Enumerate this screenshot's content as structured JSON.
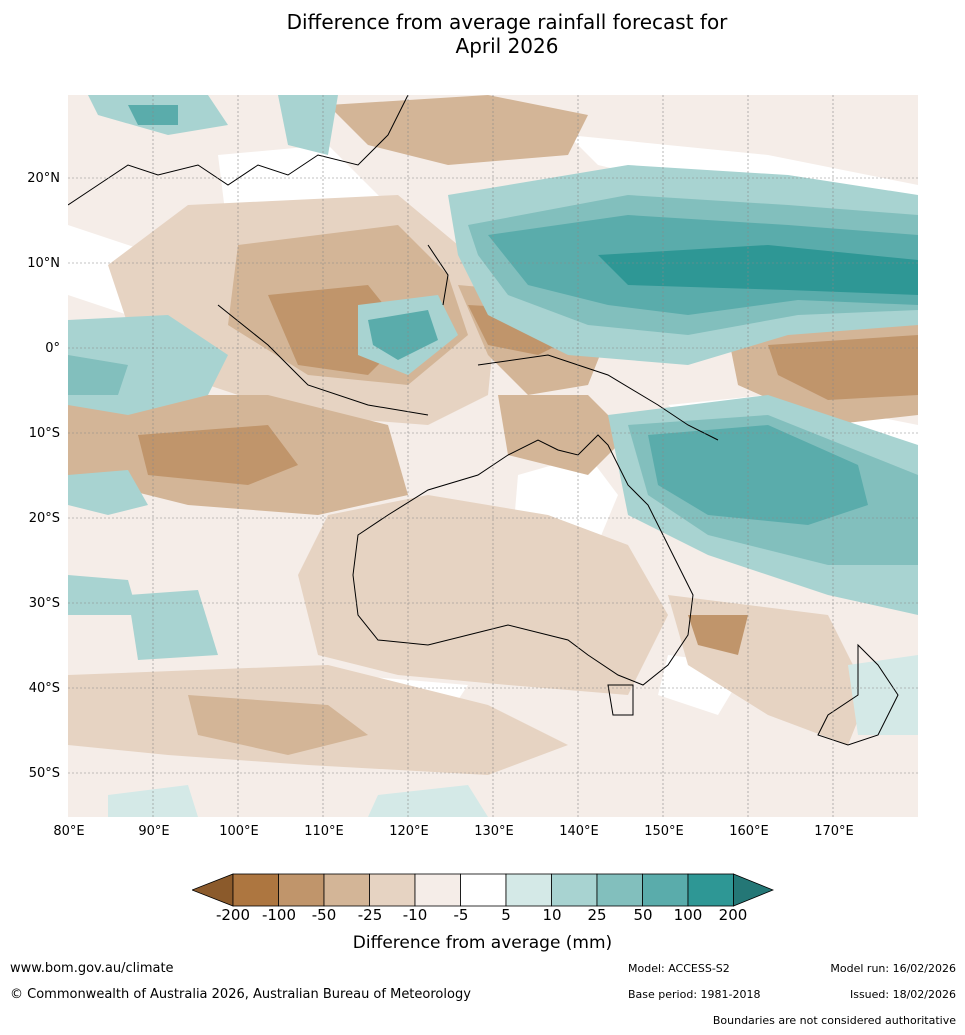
{
  "title": {
    "line1": "Difference from average rainfall forecast for",
    "line2": "April 2026"
  },
  "map": {
    "lat_labels": [
      "20°N",
      "10°N",
      "0°",
      "10°S",
      "20°S",
      "30°S",
      "40°S",
      "50°S"
    ],
    "lon_labels": [
      "80°E",
      "90°E",
      "100°E",
      "110°E",
      "120°E",
      "130°E",
      "140°E",
      "150°E",
      "160°E",
      "170°E"
    ]
  },
  "legend": {
    "ticks": [
      "-200",
      "-100",
      "-50",
      "-25",
      "-10",
      "-5",
      "5",
      "10",
      "25",
      "50",
      "100",
      "200"
    ],
    "colors": [
      "#8b5a2b",
      "#ad7640",
      "#c0956b",
      "#d3b597",
      "#e6d3c2",
      "#f5ede8",
      "#ffffff",
      "#d4e9e7",
      "#a8d3d1",
      "#82bfbd",
      "#5aacab",
      "#2e9795",
      "#247776"
    ],
    "title": "Difference from average (mm)"
  },
  "footer": {
    "website": "www.bom.gov.au/climate",
    "copyright": "© Commonwealth of Australia 2026, Australian Bureau of Meteorology",
    "model": "Model: ACCESS-S2",
    "model_run": "Model run: 16/02/2026",
    "base_period": "Base period: 1981-2018",
    "issued": "Issued: 18/02/2026",
    "disclaimer": "Boundaries are not considered authoritative"
  }
}
